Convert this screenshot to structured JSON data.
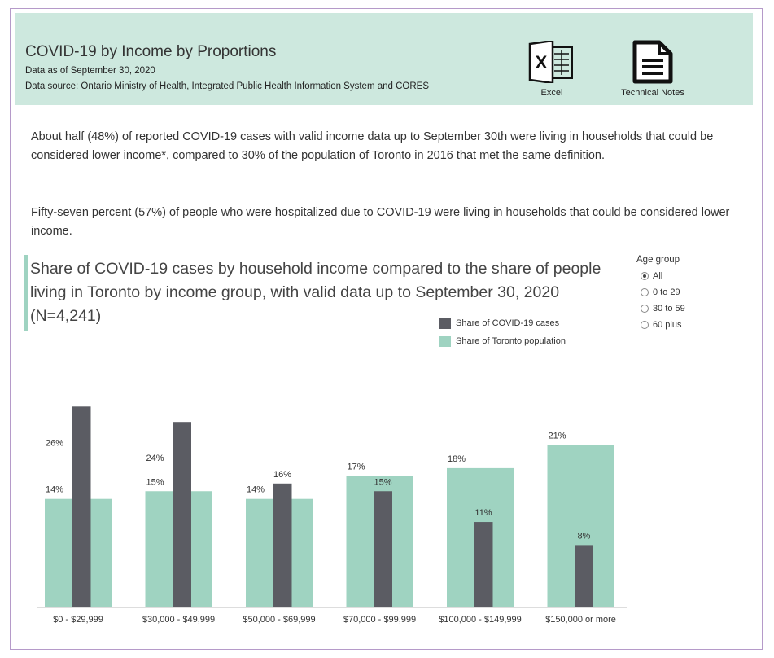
{
  "header": {
    "title": "COVID-19 by Income by Proportions",
    "as_of": "Data as of September 30, 2020",
    "source": "Data source: Ontario Ministry of Health, Integrated Public Health Information System and CORES",
    "excel_label": "Excel",
    "notes_label": "Technical Notes"
  },
  "paragraphs": [
    "About half (48%) of reported COVID-19 cases with valid income data up to September 30th were living in households that could be considered lower income*, compared to 30% of the population of Toronto in 2016 that met the same definition.",
    "Fifty-seven percent (57%) of people who were hospitalized due to COVID-19 were living in households that could be considered lower income."
  ],
  "age_filter": {
    "title": "Age group",
    "options": [
      "All",
      "0 to 29",
      "30 to 59",
      "60 plus"
    ],
    "selected": "All"
  },
  "colors": {
    "cases": "#5b5c63",
    "population": "#9fd3c1",
    "header_bg": "#cde8de"
  },
  "chart_data": {
    "type": "bar",
    "title": "Share of COVID-19 cases by household income compared to the share of people living in Toronto by income group, with valid data up to September 30, 2020 (N=4,241)",
    "categories": [
      "$0 - $29,999",
      "$30,000 - $49,999",
      "$50,000 - $69,999",
      "$70,000 - $99,999",
      "$100,000 - $149,999",
      "$150,000 or more"
    ],
    "series": [
      {
        "name": "Share of COVID-19 cases",
        "values": [
          26,
          24,
          16,
          15,
          11,
          8
        ],
        "labels": [
          "26%",
          "24%",
          "16%",
          "15%",
          "11%",
          "8%"
        ]
      },
      {
        "name": "Share of Toronto population",
        "values": [
          14,
          15,
          14,
          17,
          18,
          21
        ],
        "labels": [
          "14%",
          "15%",
          "14%",
          "17%",
          "18%",
          "21%"
        ]
      }
    ],
    "legend_position": "top-right",
    "grid": false
  }
}
